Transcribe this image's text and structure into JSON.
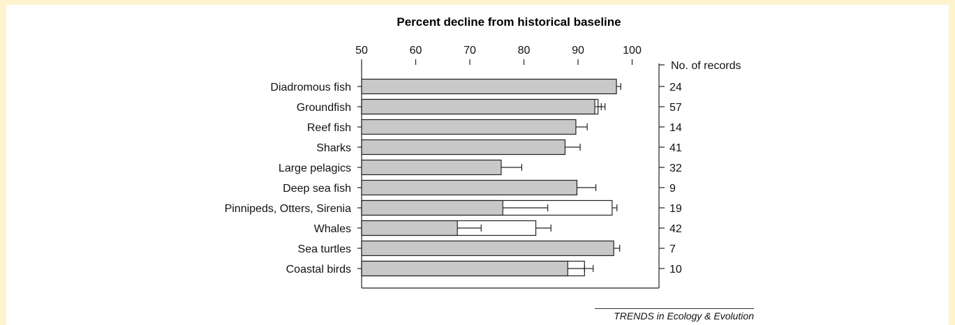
{
  "chart_data": {
    "type": "bar",
    "title": "Percent decline from historical baseline",
    "xlim": [
      50,
      105
    ],
    "xticks": [
      "50",
      "60",
      "70",
      "80",
      "90",
      "100"
    ],
    "right_axis_label": "No. of records",
    "categories": [
      "Diadromous fish",
      "Groundfish",
      "Reef fish",
      "Sharks",
      "Large pelagics",
      "Deep sea fish",
      "Pinnipeds, Otters, Sirenia",
      "Whales",
      "Sea turtles",
      "Coastal birds"
    ],
    "records": [
      "24",
      "57",
      "14",
      "41",
      "32",
      "9",
      "19",
      "42",
      "7",
      "10"
    ],
    "series": [
      {
        "values": [
          97.1,
          93.1,
          89.6,
          87.6,
          75.8,
          89.8,
          76.1,
          67.7,
          96.6,
          88.1
        ],
        "errors": [
          0.8,
          1.2,
          2.1,
          2.8,
          3.8,
          3.5,
          8.3,
          4.4,
          1.1,
          3.1
        ],
        "color": "#c8c8c8"
      },
      {
        "values": [
          null,
          93.7,
          null,
          null,
          null,
          null,
          96.3,
          82.2,
          null,
          91.2
        ],
        "errors": [
          null,
          1.3,
          null,
          null,
          null,
          null,
          0.9,
          2.8,
          null,
          1.6
        ],
        "color": "#ffffff"
      }
    ]
  },
  "footer": "TRENDS in Ecology & Evolution"
}
